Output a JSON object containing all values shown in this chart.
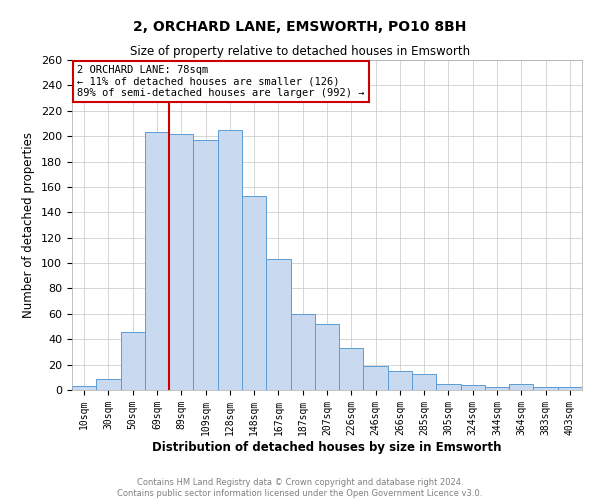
{
  "title": "2, ORCHARD LANE, EMSWORTH, PO10 8BH",
  "subtitle": "Size of property relative to detached houses in Emsworth",
  "xlabel": "Distribution of detached houses by size in Emsworth",
  "ylabel": "Number of detached properties",
  "bin_labels": [
    "10sqm",
    "30sqm",
    "50sqm",
    "69sqm",
    "89sqm",
    "109sqm",
    "128sqm",
    "148sqm",
    "167sqm",
    "187sqm",
    "207sqm",
    "226sqm",
    "246sqm",
    "266sqm",
    "285sqm",
    "305sqm",
    "324sqm",
    "344sqm",
    "364sqm",
    "383sqm",
    "403sqm"
  ],
  "bar_heights": [
    3,
    9,
    46,
    203,
    202,
    197,
    205,
    153,
    103,
    60,
    52,
    33,
    19,
    15,
    13,
    5,
    4,
    2,
    5,
    2,
    2
  ],
  "bar_color": "#c9d9f0",
  "bar_edgecolor": "#5b9bd5",
  "vline_x": 3.5,
  "vline_color": "#cc0000",
  "annotation_text": "2 ORCHARD LANE: 78sqm\n← 11% of detached houses are smaller (126)\n89% of semi-detached houses are larger (992) →",
  "annotation_box_color": "#ffffff",
  "annotation_box_edgecolor": "#cc0000",
  "ylim": [
    0,
    260
  ],
  "yticks": [
    0,
    20,
    40,
    60,
    80,
    100,
    120,
    140,
    160,
    180,
    200,
    220,
    240,
    260
  ],
  "footer_line1": "Contains HM Land Registry data © Crown copyright and database right 2024.",
  "footer_line2": "Contains public sector information licensed under the Open Government Licence v3.0.",
  "background_color": "#ffffff",
  "grid_color": "#d0d0d0"
}
